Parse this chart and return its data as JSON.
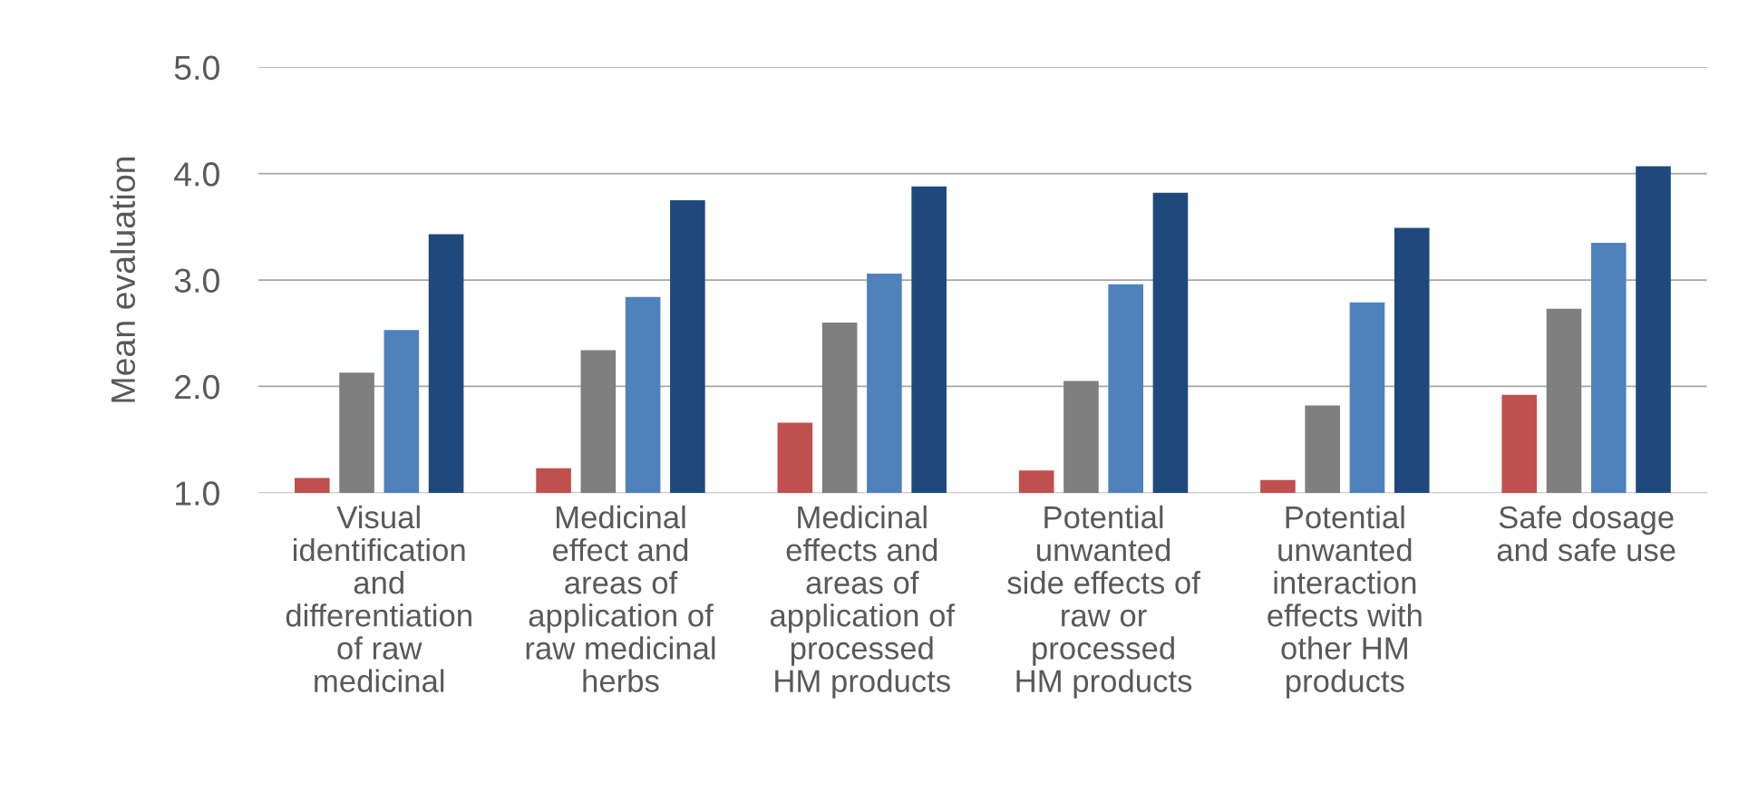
{
  "chart_data": {
    "type": "bar",
    "ylabel": "Mean evaluation",
    "categories": [
      "Visual\nidentification\nand\ndifferentiation\nof raw\nmedicinal",
      "Medicinal\neffect and\nareas of\napplication of\nraw medicinal\nherbs",
      "Medicinal\neffects and\nareas of\napplication of\nprocessed\nHM products",
      "Potential\nunwanted\nside effects of\nraw or\nprocessed\nHM products",
      "Potential\nunwanted\ninteraction\neffects with\nother HM\nproducts",
      "Safe dosage\nand safe use"
    ],
    "series": [
      {
        "color": "#c0504d",
        "values": [
          1.14,
          1.23,
          1.66,
          1.21,
          1.12,
          1.92
        ]
      },
      {
        "color": "#7f7f7f",
        "values": [
          2.13,
          2.34,
          2.6,
          2.05,
          1.82,
          2.73
        ]
      },
      {
        "color": "#4f81bd",
        "values": [
          2.53,
          2.84,
          3.06,
          2.96,
          2.79,
          3.35
        ]
      },
      {
        "color": "#1f497d",
        "values": [
          3.43,
          3.75,
          3.88,
          3.82,
          3.49,
          4.07
        ]
      }
    ],
    "ylim": [
      1,
      5
    ],
    "yticks": [
      {
        "value": 1,
        "label": "1.0"
      },
      {
        "value": 2,
        "label": "2.0"
      },
      {
        "value": 3,
        "label": "3.0"
      },
      {
        "value": 4,
        "label": "4.0"
      },
      {
        "value": 5,
        "label": "5.0"
      }
    ],
    "grid": "y",
    "legend": false
  }
}
